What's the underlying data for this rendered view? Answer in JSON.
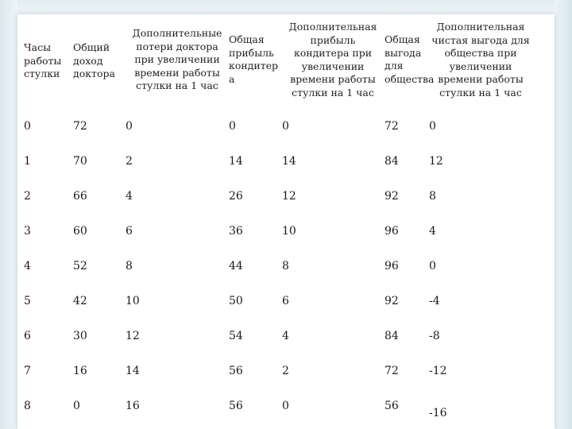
{
  "table": {
    "headers": [
      [
        "Часы",
        "работы",
        "стулки"
      ],
      [
        "Общий",
        "доход",
        "доктора"
      ],
      [
        "Дополнительные",
        "потери доктора",
        "при увеличении",
        "времени работы",
        "стулки на 1 час"
      ],
      [
        "Общая",
        "прибыль",
        "кондитер",
        "а"
      ],
      [
        "Дополнительная",
        "прибыль",
        "кондитера при",
        "увеличении",
        "времени работы",
        "стулки на 1 час"
      ],
      [
        "Общая",
        "выгода",
        "для",
        "общества"
      ],
      [
        "Дополнительная",
        "чистая выгода для",
        "общества при",
        "увеличении",
        "времени работы",
        "стулки на 1 час"
      ]
    ],
    "rows": [
      [
        "0",
        "72",
        "0",
        "0",
        "0",
        "72",
        "0"
      ],
      [
        "1",
        "70",
        "2",
        "14",
        "14",
        "84",
        "12"
      ],
      [
        "2",
        "66",
        "4",
        "26",
        "12",
        "92",
        "8"
      ],
      [
        "3",
        "60",
        "6",
        "36",
        "10",
        "96",
        "4"
      ],
      [
        "4",
        "52",
        "8",
        "44",
        "8",
        "96",
        "0"
      ],
      [
        "5",
        "42",
        "10",
        "50",
        "6",
        "92",
        "-4"
      ],
      [
        "6",
        "30",
        "12",
        "54",
        "4",
        "84",
        "-8"
      ],
      [
        "7",
        "16",
        "14",
        "56",
        "2",
        "72",
        "-12"
      ],
      [
        "8",
        "0",
        "16",
        "56",
        "0",
        "56",
        "-16"
      ]
    ]
  }
}
